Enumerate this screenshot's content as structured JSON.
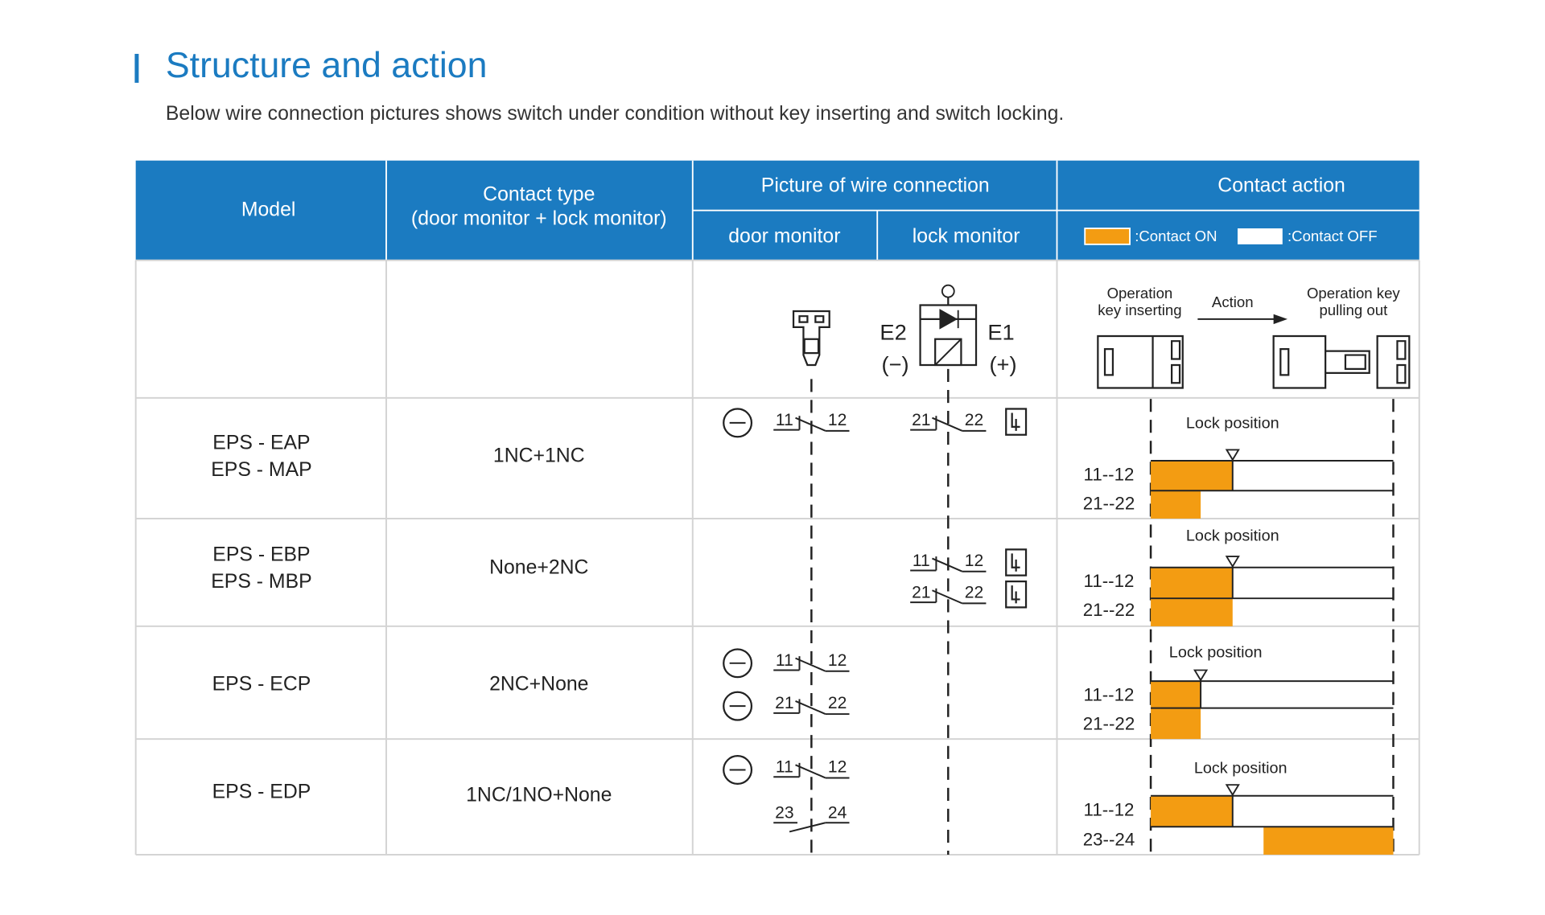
{
  "header": {
    "title": "Structure and action",
    "subtitle": "Below wire connection pictures shows switch under condition without key inserting and switch locking."
  },
  "table": {
    "columns": {
      "model": "Model",
      "contact_type": [
        "Contact type",
        "(door monitor + lock monitor)"
      ],
      "picture": "Picture of wire connection",
      "door_monitor": "door monitor",
      "lock_monitor": "lock monitor",
      "contact_action": "Contact action",
      "legend_on": ":Contact ON",
      "legend_off": ":Contact OFF"
    },
    "diagram": {
      "e2": "E2",
      "e2_sign": "(−)",
      "e1": "E1",
      "e1_sign": "(+)",
      "key_inserting": [
        "Operation",
        "key inserting"
      ],
      "action": "Action",
      "key_pulling": [
        "Operation key",
        "pulling out"
      ]
    },
    "rows": [
      {
        "models": [
          "EPS - EAP",
          "EPS - MAP"
        ],
        "contact": "1NC+1NC",
        "door": [
          [
            "11",
            "12"
          ]
        ],
        "lock": [
          [
            "21",
            "22"
          ]
        ],
        "lock_position": "Lock position",
        "action_labels": [
          "11--12",
          "21--22"
        ]
      },
      {
        "models": [
          "EPS - EBP",
          "EPS - MBP"
        ],
        "contact": "None+2NC",
        "door": [],
        "lock": [
          [
            "11",
            "12"
          ],
          [
            "21",
            "22"
          ]
        ],
        "lock_position": "Lock position",
        "action_labels": [
          "11--12",
          "21--22"
        ]
      },
      {
        "models": [
          "EPS - ECP"
        ],
        "contact": "2NC+None",
        "door": [
          [
            "11",
            "12"
          ],
          [
            "21",
            "22"
          ]
        ],
        "lock": [],
        "lock_position": "Lock position",
        "action_labels": [
          "11--12",
          "21--22"
        ]
      },
      {
        "models": [
          "EPS - EDP"
        ],
        "contact": "1NC/1NO+None",
        "door": [
          [
            "11",
            "12"
          ],
          [
            "23",
            "24"
          ]
        ],
        "lock": [],
        "lock_position": "Lock position",
        "action_labels": [
          "11--12",
          "23--24"
        ]
      }
    ]
  }
}
